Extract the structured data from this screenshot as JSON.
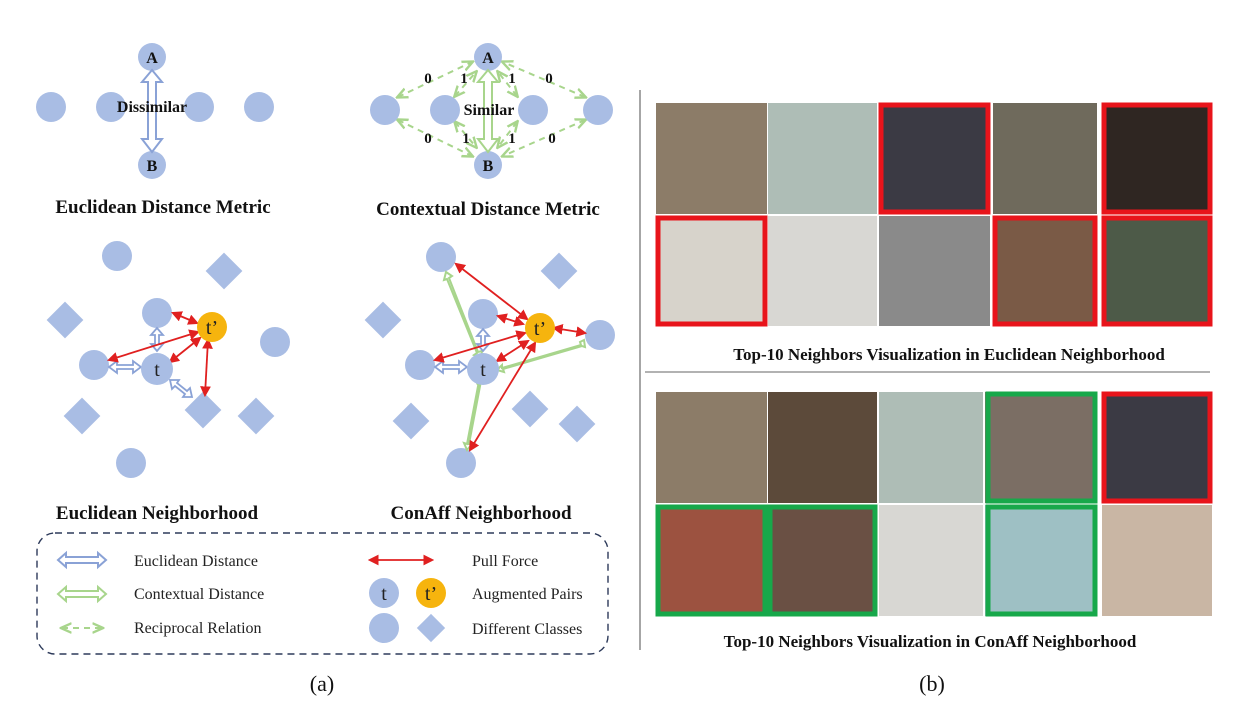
{
  "panel_a": {
    "caption": "(a)",
    "euclidean_metric": {
      "title": "Euclidean Distance Metric",
      "node_a": "A",
      "node_b": "B",
      "relation": "Dissimilar"
    },
    "contextual_metric": {
      "title": "Contextual Distance Metric",
      "node_a": "A",
      "node_b": "B",
      "relation": "Similar",
      "weights": [
        "0",
        "1",
        "1",
        "0",
        "0",
        "1",
        "1",
        "0"
      ]
    },
    "euclidean_neighborhood": {
      "title": "Euclidean Neighborhood",
      "anchor": "t",
      "augmented": "t’"
    },
    "conaff_neighborhood": {
      "title": "ConAff  Neighborhood",
      "anchor": "t",
      "augmented": "t’"
    },
    "legend": {
      "euclidean_distance": "Euclidean Distance",
      "contextual_distance": "Contextual Distance",
      "reciprocal_relation": "Reciprocal Relation",
      "pull_force": "Pull Force",
      "augmented_pairs": "Augmented Pairs",
      "different_classes": "Different Classes",
      "t_symbol": "t",
      "t_prime_symbol": "t’"
    }
  },
  "panel_b": {
    "caption": "(b)",
    "euclidean_title": "Top-10 Neighbors Visualization in Euclidean Neighborhood",
    "conaff_title": "Top-10 Neighbors Visualization in ConAff Neighborhood",
    "euclidean_borders": [
      "none",
      "none",
      "red",
      "none",
      "red",
      "red",
      "none",
      "none",
      "red",
      "red"
    ],
    "conaff_borders": [
      "none",
      "none",
      "none",
      "green",
      "red",
      "green",
      "green",
      "none",
      "green",
      "none"
    ]
  },
  "colors": {
    "node": "#a9bde4",
    "augmented": "#f6b40e",
    "pull_force": "#e02020",
    "contextual": "#a8d58c",
    "euclidean_arrow": "#8aa2d6",
    "wrong": "#e8141b",
    "correct": "#17a84a"
  }
}
